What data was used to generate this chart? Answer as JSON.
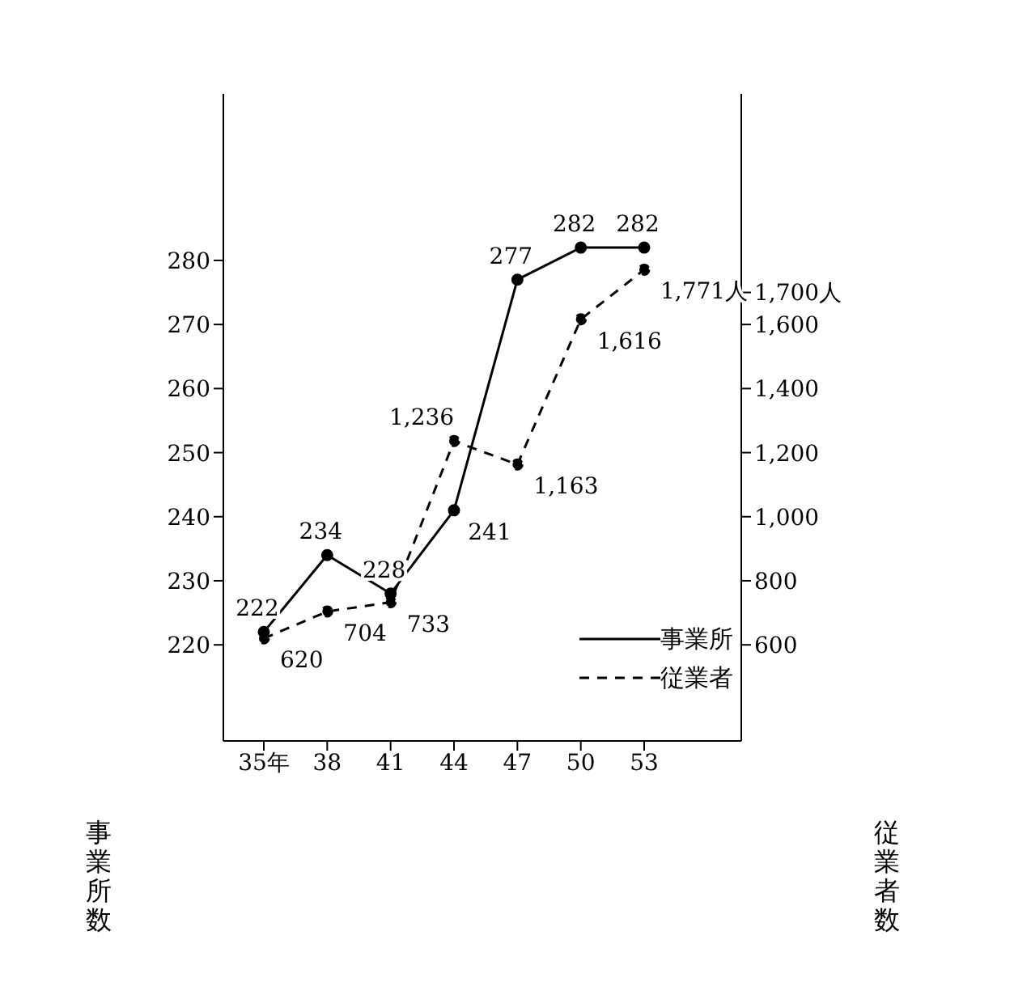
{
  "chart_data": {
    "type": "line",
    "categories": [
      "35年",
      "38",
      "41",
      "44",
      "47",
      "50",
      "53"
    ],
    "ylabel": "事業所数",
    "y2label": "従業者数",
    "series": [
      {
        "name": "事業所",
        "color": "#000000",
        "line_style": "solid",
        "values": [
          222,
          234,
          228,
          241,
          277,
          282,
          282
        ],
        "value_labels": [
          "222",
          "234",
          "228",
          "241",
          "277",
          "282",
          "282"
        ]
      },
      {
        "name": "従業者",
        "color": "#000000",
        "line_style": "dashed",
        "axis": "y2",
        "values": [
          620,
          704,
          733,
          1236,
          1163,
          1616,
          1771
        ],
        "value_labels": [
          "620",
          "704",
          "733",
          "1,236",
          "1,163",
          "1,616",
          "1,771人"
        ]
      }
    ],
    "ylim": [
      205,
      306
    ],
    "yticks": [
      220,
      230,
      240,
      250,
      260,
      270,
      280
    ],
    "y2lim": [
      300,
      2320
    ],
    "y2ticks": [
      {
        "value": 600,
        "label": "600"
      },
      {
        "value": 800,
        "label": "800"
      },
      {
        "value": 1000,
        "label": "1,000"
      },
      {
        "value": 1200,
        "label": "1,200"
      },
      {
        "value": 1400,
        "label": "1,400"
      },
      {
        "value": 1600,
        "label": "1,600"
      },
      {
        "value": 1700,
        "label": "1,700人"
      }
    ],
    "marker": "circle",
    "grid": false,
    "legend": "bottom right"
  }
}
